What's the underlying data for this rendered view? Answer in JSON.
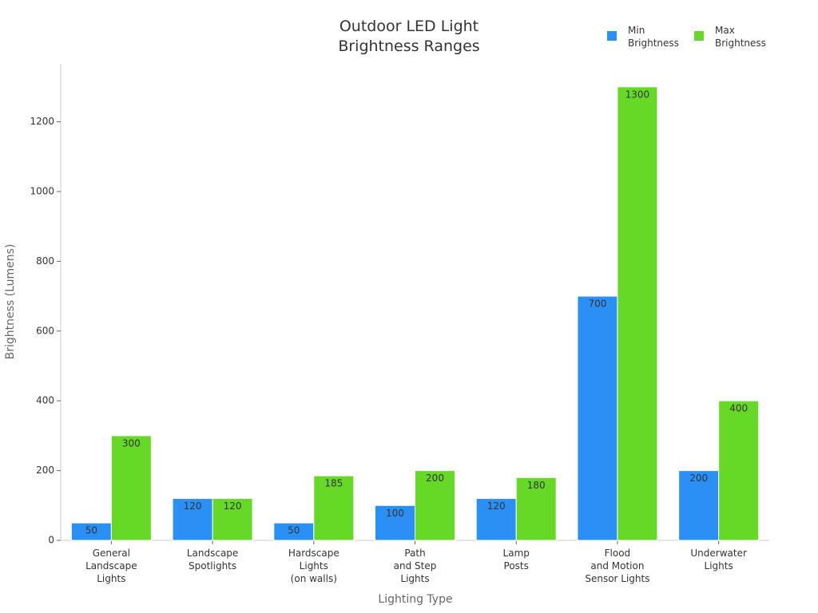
{
  "chart_data": {
    "type": "bar",
    "title": "Outdoor LED Light\nBrightness Ranges",
    "x_label": "Lighting Type",
    "y_label": "Brightness (Lumens)",
    "categories": [
      "General\nLandscape\nLights",
      "Landscape\nSpotlights",
      "Hardscape\nLights\n(on walls)",
      "Path\nand Step\nLights",
      "Lamp\nPosts",
      "Flood\nand Motion\nSensor Lights",
      "Underwater\nLights"
    ],
    "series": [
      {
        "name": "Min\nBrightness",
        "color": "#2b90f5",
        "values": [
          50,
          120,
          50,
          100,
          120,
          700,
          200
        ]
      },
      {
        "name": "Max\nBrightness",
        "color": "#66d926",
        "values": [
          300,
          120,
          185,
          200,
          180,
          1300,
          400
        ]
      }
    ],
    "ylim": [
      0,
      1366
    ],
    "yticks": [
      0,
      200,
      400,
      600,
      800,
      1000,
      1200
    ],
    "legend": "top-right",
    "grid": false
  }
}
